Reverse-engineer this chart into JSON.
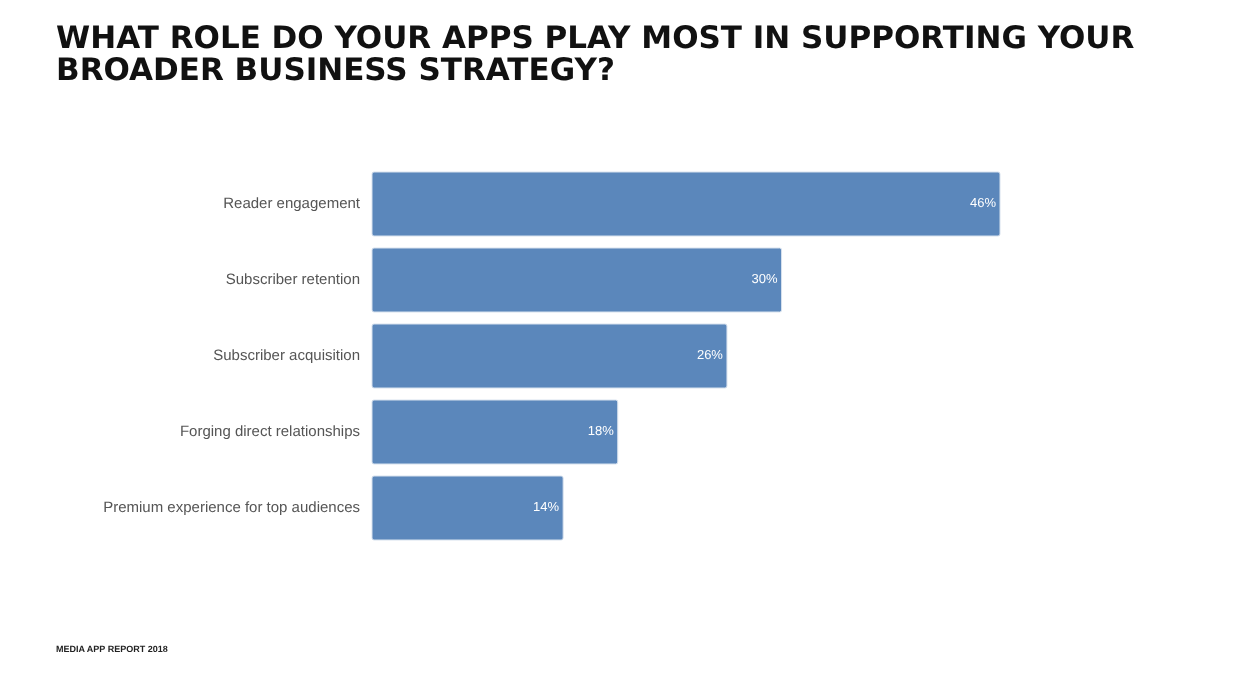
{
  "chart_data": {
    "type": "bar",
    "orientation": "horizontal",
    "title": "WHAT ROLE DO YOUR APPS PLAY MOST IN SUPPORTING YOUR BROADER BUSINESS STRATEGY?",
    "categories": [
      "Reader engagement",
      "Subscriber retention",
      "Subscriber acquisition",
      "Forging direct relationships",
      "Premium experience for top audiences"
    ],
    "values": [
      46,
      30,
      26,
      18,
      14
    ],
    "value_labels": [
      "46%",
      "30%",
      "26%",
      "18%",
      "14%"
    ],
    "color": "#5b87bb",
    "annotations": [
      "MEDIA APP REPORT 2018"
    ]
  }
}
